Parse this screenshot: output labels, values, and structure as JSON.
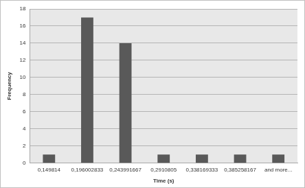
{
  "chart_data": {
    "type": "bar",
    "x_label": "Time (s)",
    "y_label": "Frequency",
    "categories": [
      "0,149814",
      "0,196002833",
      "0,243991667",
      "0,2910805",
      "0,338169333",
      "0,385258167",
      "and more..."
    ],
    "values": [
      1,
      17,
      14,
      1,
      1,
      1,
      1
    ],
    "color": "#595959",
    "ylim": [
      0,
      18
    ],
    "yticks": [
      0,
      2,
      4,
      6,
      8,
      10,
      12,
      14,
      16,
      18
    ],
    "grid": true
  }
}
